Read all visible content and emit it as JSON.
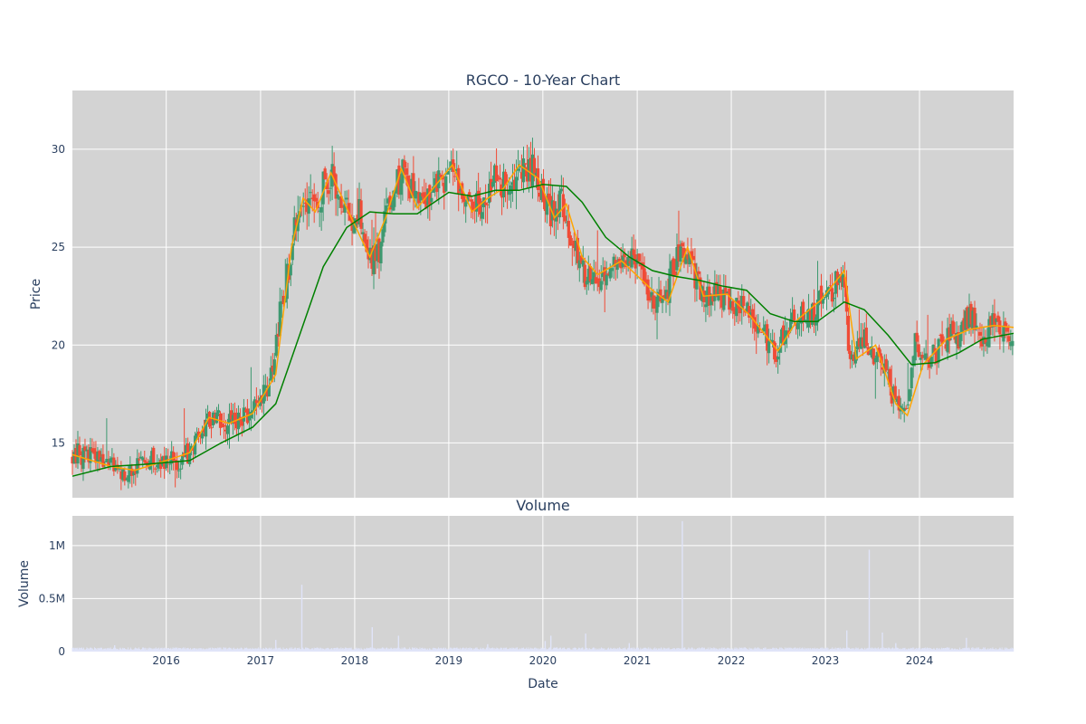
{
  "chart_data": [
    {
      "type": "candlestick",
      "title": "RGCO - 10-Year Chart",
      "ylabel": "Price",
      "xlabel": "",
      "x_range": [
        "2015-01-02",
        "2024-12-31"
      ],
      "ylim": [
        12.2,
        33.0
      ],
      "y_ticks": [
        15,
        20,
        25,
        30
      ],
      "x_ticks": [
        "2016",
        "2017",
        "2018",
        "2019",
        "2020",
        "2021",
        "2022",
        "2023",
        "2024"
      ],
      "grid": true,
      "background": "#d3d3d3",
      "up_color": "#3d9970",
      "down_color": "#f04b36",
      "close_anchors": [
        [
          "2015-01-02",
          14.5
        ],
        [
          "2015-03-01",
          14.4
        ],
        [
          "2015-05-01",
          13.9
        ],
        [
          "2015-07-01",
          13.6
        ],
        [
          "2015-09-01",
          13.6
        ],
        [
          "2015-11-01",
          14.1
        ],
        [
          "2016-01-01",
          14.0
        ],
        [
          "2016-03-01",
          14.2
        ],
        [
          "2016-05-01",
          15.0
        ],
        [
          "2016-06-15",
          16.4
        ],
        [
          "2016-08-01",
          16.0
        ],
        [
          "2016-10-01",
          16.3
        ],
        [
          "2016-12-01",
          16.5
        ],
        [
          "2017-01-15",
          17.5
        ],
        [
          "2017-02-15",
          18.5
        ],
        [
          "2017-03-15",
          21.5
        ],
        [
          "2017-04-15",
          23.5
        ],
        [
          "2017-05-15",
          26.0
        ],
        [
          "2017-06-15",
          27.5
        ],
        [
          "2017-07-15",
          27.0
        ],
        [
          "2017-08-15",
          27.5
        ],
        [
          "2017-09-15",
          28.5
        ],
        [
          "2017-10-15",
          28.5
        ],
        [
          "2017-11-15",
          27.0
        ],
        [
          "2017-12-15",
          26.5
        ],
        [
          "2018-01-15",
          27.0
        ],
        [
          "2018-02-10",
          25.5
        ],
        [
          "2018-03-10",
          24.5
        ],
        [
          "2018-04-10",
          25.0
        ],
        [
          "2018-05-10",
          27.0
        ],
        [
          "2018-06-10",
          28.0
        ],
        [
          "2018-07-10",
          29.0
        ],
        [
          "2018-08-10",
          28.0
        ],
        [
          "2018-09-10",
          27.0
        ],
        [
          "2018-10-10",
          27.5
        ],
        [
          "2018-11-10",
          28.5
        ],
        [
          "2018-12-10",
          28.0
        ],
        [
          "2019-01-10",
          29.0
        ],
        [
          "2019-02-15",
          28.0
        ],
        [
          "2019-03-15",
          27.5
        ],
        [
          "2019-05-01",
          27.0
        ],
        [
          "2019-06-01",
          28.0
        ],
        [
          "2019-07-01",
          28.5
        ],
        [
          "2019-08-15",
          28.0
        ],
        [
          "2019-10-01",
          29.0
        ],
        [
          "2019-11-15",
          29.0
        ],
        [
          "2019-12-15",
          28.5
        ],
        [
          "2020-01-15",
          27.0
        ],
        [
          "2020-02-15",
          26.5
        ],
        [
          "2020-03-15",
          27.5
        ],
        [
          "2020-04-15",
          25.5
        ],
        [
          "2020-05-15",
          24.5
        ],
        [
          "2020-06-15",
          23.5
        ],
        [
          "2020-08-01",
          23.5
        ],
        [
          "2020-09-15",
          24.0
        ],
        [
          "2020-11-01",
          24.5
        ],
        [
          "2020-12-15",
          24.5
        ],
        [
          "2021-01-15",
          23.5
        ],
        [
          "2021-03-01",
          22.5
        ],
        [
          "2021-04-15",
          22.0
        ],
        [
          "2021-06-01",
          24.5
        ],
        [
          "2021-07-15",
          25.0
        ],
        [
          "2021-08-15",
          23.5
        ],
        [
          "2021-09-15",
          22.5
        ],
        [
          "2021-11-01",
          22.5
        ],
        [
          "2021-12-15",
          22.5
        ],
        [
          "2022-02-01",
          22.0
        ],
        [
          "2022-03-15",
          21.5
        ],
        [
          "2022-05-01",
          21.0
        ],
        [
          "2022-06-15",
          19.5
        ],
        [
          "2022-08-01",
          20.5
        ],
        [
          "2022-09-15",
          21.5
        ],
        [
          "2022-11-01",
          21.5
        ],
        [
          "2022-12-15",
          22.5
        ],
        [
          "2023-02-01",
          23.0
        ],
        [
          "2023-03-15",
          23.8
        ],
        [
          "2023-04-01",
          20.0
        ],
        [
          "2023-05-01",
          19.5
        ],
        [
          "2023-06-01",
          20.5
        ],
        [
          "2023-07-15",
          19.5
        ],
        [
          "2023-09-01",
          18.0
        ],
        [
          "2023-10-15",
          16.5
        ],
        [
          "2023-11-15",
          16.5
        ],
        [
          "2023-12-15",
          20.0
        ],
        [
          "2024-01-15",
          19.0
        ],
        [
          "2024-03-01",
          19.5
        ],
        [
          "2024-04-15",
          20.5
        ],
        [
          "2024-06-01",
          20.5
        ],
        [
          "2024-07-15",
          21.5
        ],
        [
          "2024-09-01",
          20.5
        ],
        [
          "2024-10-15",
          21.0
        ],
        [
          "2024-12-31",
          20.8
        ]
      ],
      "series": [
        {
          "color": "#ffa500",
          "values": [
            [
              "2015-01-02",
              14.4
            ],
            [
              "2015-06-01",
              13.8
            ],
            [
              "2015-09-01",
              13.6
            ],
            [
              "2016-01-01",
              14.1
            ],
            [
              "2016-04-01",
              14.5
            ],
            [
              "2016-06-15",
              16.3
            ],
            [
              "2016-09-01",
              16.0
            ],
            [
              "2016-12-01",
              16.5
            ],
            [
              "2017-03-01",
              18.5
            ],
            [
              "2017-05-01",
              25.0
            ],
            [
              "2017-06-15",
              27.5
            ],
            [
              "2017-08-01",
              26.8
            ],
            [
              "2017-10-01",
              28.8
            ],
            [
              "2017-12-01",
              27.0
            ],
            [
              "2018-03-01",
              24.5
            ],
            [
              "2018-05-01",
              26.5
            ],
            [
              "2018-07-01",
              29.0
            ],
            [
              "2018-09-01",
              27.0
            ],
            [
              "2018-11-01",
              28.0
            ],
            [
              "2019-01-15",
              29.2
            ],
            [
              "2019-04-01",
              26.8
            ],
            [
              "2019-06-01",
              27.5
            ],
            [
              "2019-08-01",
              28.0
            ],
            [
              "2019-10-01",
              29.2
            ],
            [
              "2019-12-15",
              28.5
            ],
            [
              "2020-02-15",
              26.5
            ],
            [
              "2020-04-01",
              27.2
            ],
            [
              "2020-06-01",
              24.5
            ],
            [
              "2020-08-01",
              23.6
            ],
            [
              "2020-11-01",
              24.3
            ],
            [
              "2021-03-01",
              22.8
            ],
            [
              "2021-05-01",
              22.2
            ],
            [
              "2021-07-15",
              25.0
            ],
            [
              "2021-09-15",
              22.5
            ],
            [
              "2021-12-15",
              22.6
            ],
            [
              "2022-03-15",
              21.5
            ],
            [
              "2022-07-01",
              19.7
            ],
            [
              "2022-09-15",
              21.3
            ],
            [
              "2022-12-15",
              22.3
            ],
            [
              "2023-03-15",
              23.8
            ],
            [
              "2023-05-01",
              19.3
            ],
            [
              "2023-07-15",
              20.0
            ],
            [
              "2023-10-01",
              17.0
            ],
            [
              "2023-11-15",
              16.4
            ],
            [
              "2024-01-15",
              19.0
            ],
            [
              "2024-04-15",
              20.3
            ],
            [
              "2024-07-15",
              20.8
            ],
            [
              "2024-10-15",
              21.0
            ],
            [
              "2024-12-31",
              20.9
            ]
          ]
        },
        {
          "color": "#008000",
          "values": [
            [
              "2015-01-02",
              13.3
            ],
            [
              "2015-06-01",
              13.8
            ],
            [
              "2015-10-01",
              13.9
            ],
            [
              "2016-04-01",
              14.1
            ],
            [
              "2016-08-01",
              15.0
            ],
            [
              "2016-12-01",
              15.8
            ],
            [
              "2017-03-01",
              17.0
            ],
            [
              "2017-06-01",
              20.5
            ],
            [
              "2017-09-01",
              24.0
            ],
            [
              "2017-12-01",
              26.0
            ],
            [
              "2018-03-01",
              26.8
            ],
            [
              "2018-06-01",
              26.7
            ],
            [
              "2018-09-01",
              26.7
            ],
            [
              "2019-01-01",
              27.8
            ],
            [
              "2019-04-01",
              27.6
            ],
            [
              "2019-07-01",
              27.9
            ],
            [
              "2019-10-01",
              27.9
            ],
            [
              "2020-01-01",
              28.2
            ],
            [
              "2020-04-01",
              28.1
            ],
            [
              "2020-06-01",
              27.3
            ],
            [
              "2020-09-01",
              25.5
            ],
            [
              "2020-12-01",
              24.5
            ],
            [
              "2021-03-01",
              23.8
            ],
            [
              "2021-06-01",
              23.5
            ],
            [
              "2021-09-01",
              23.3
            ],
            [
              "2021-12-01",
              23.0
            ],
            [
              "2022-03-01",
              22.8
            ],
            [
              "2022-06-01",
              21.6
            ],
            [
              "2022-09-01",
              21.2
            ],
            [
              "2022-12-01",
              21.2
            ],
            [
              "2023-03-15",
              22.2
            ],
            [
              "2023-06-01",
              21.8
            ],
            [
              "2023-09-01",
              20.5
            ],
            [
              "2023-12-01",
              19.0
            ],
            [
              "2024-03-01",
              19.1
            ],
            [
              "2024-06-01",
              19.6
            ],
            [
              "2024-09-01",
              20.3
            ],
            [
              "2024-12-31",
              20.6
            ]
          ]
        }
      ]
    },
    {
      "type": "bar",
      "title": "Volume",
      "xlabel": "Date",
      "ylabel": "Volume",
      "ylim": [
        0,
        1280000
      ],
      "y_ticks": [
        0,
        500000,
        1000000
      ],
      "y_tick_labels": [
        "0",
        "0.5M",
        "1M"
      ],
      "x_ticks": [
        "2016",
        "2017",
        "2018",
        "2019",
        "2020",
        "2021",
        "2022",
        "2023",
        "2024"
      ],
      "grid": true,
      "background": "#d3d3d3",
      "bar_color": "#e0e4f8",
      "spikes": [
        [
          "2015-06-15",
          60000
        ],
        [
          "2017-03-01",
          110000
        ],
        [
          "2017-06-10",
          630000
        ],
        [
          "2018-03-10",
          230000
        ],
        [
          "2018-06-20",
          150000
        ],
        [
          "2019-06-01",
          70000
        ],
        [
          "2020-02-01",
          150000
        ],
        [
          "2020-01-10",
          100000
        ],
        [
          "2020-06-15",
          170000
        ],
        [
          "2020-12-01",
          80000
        ],
        [
          "2021-06-25",
          1230000
        ],
        [
          "2023-03-25",
          200000
        ],
        [
          "2023-06-20",
          960000
        ],
        [
          "2023-08-10",
          180000
        ],
        [
          "2023-10-01",
          80000
        ],
        [
          "2024-07-01",
          130000
        ]
      ],
      "baseline_volume": [
        15000,
        40000
      ]
    }
  ]
}
